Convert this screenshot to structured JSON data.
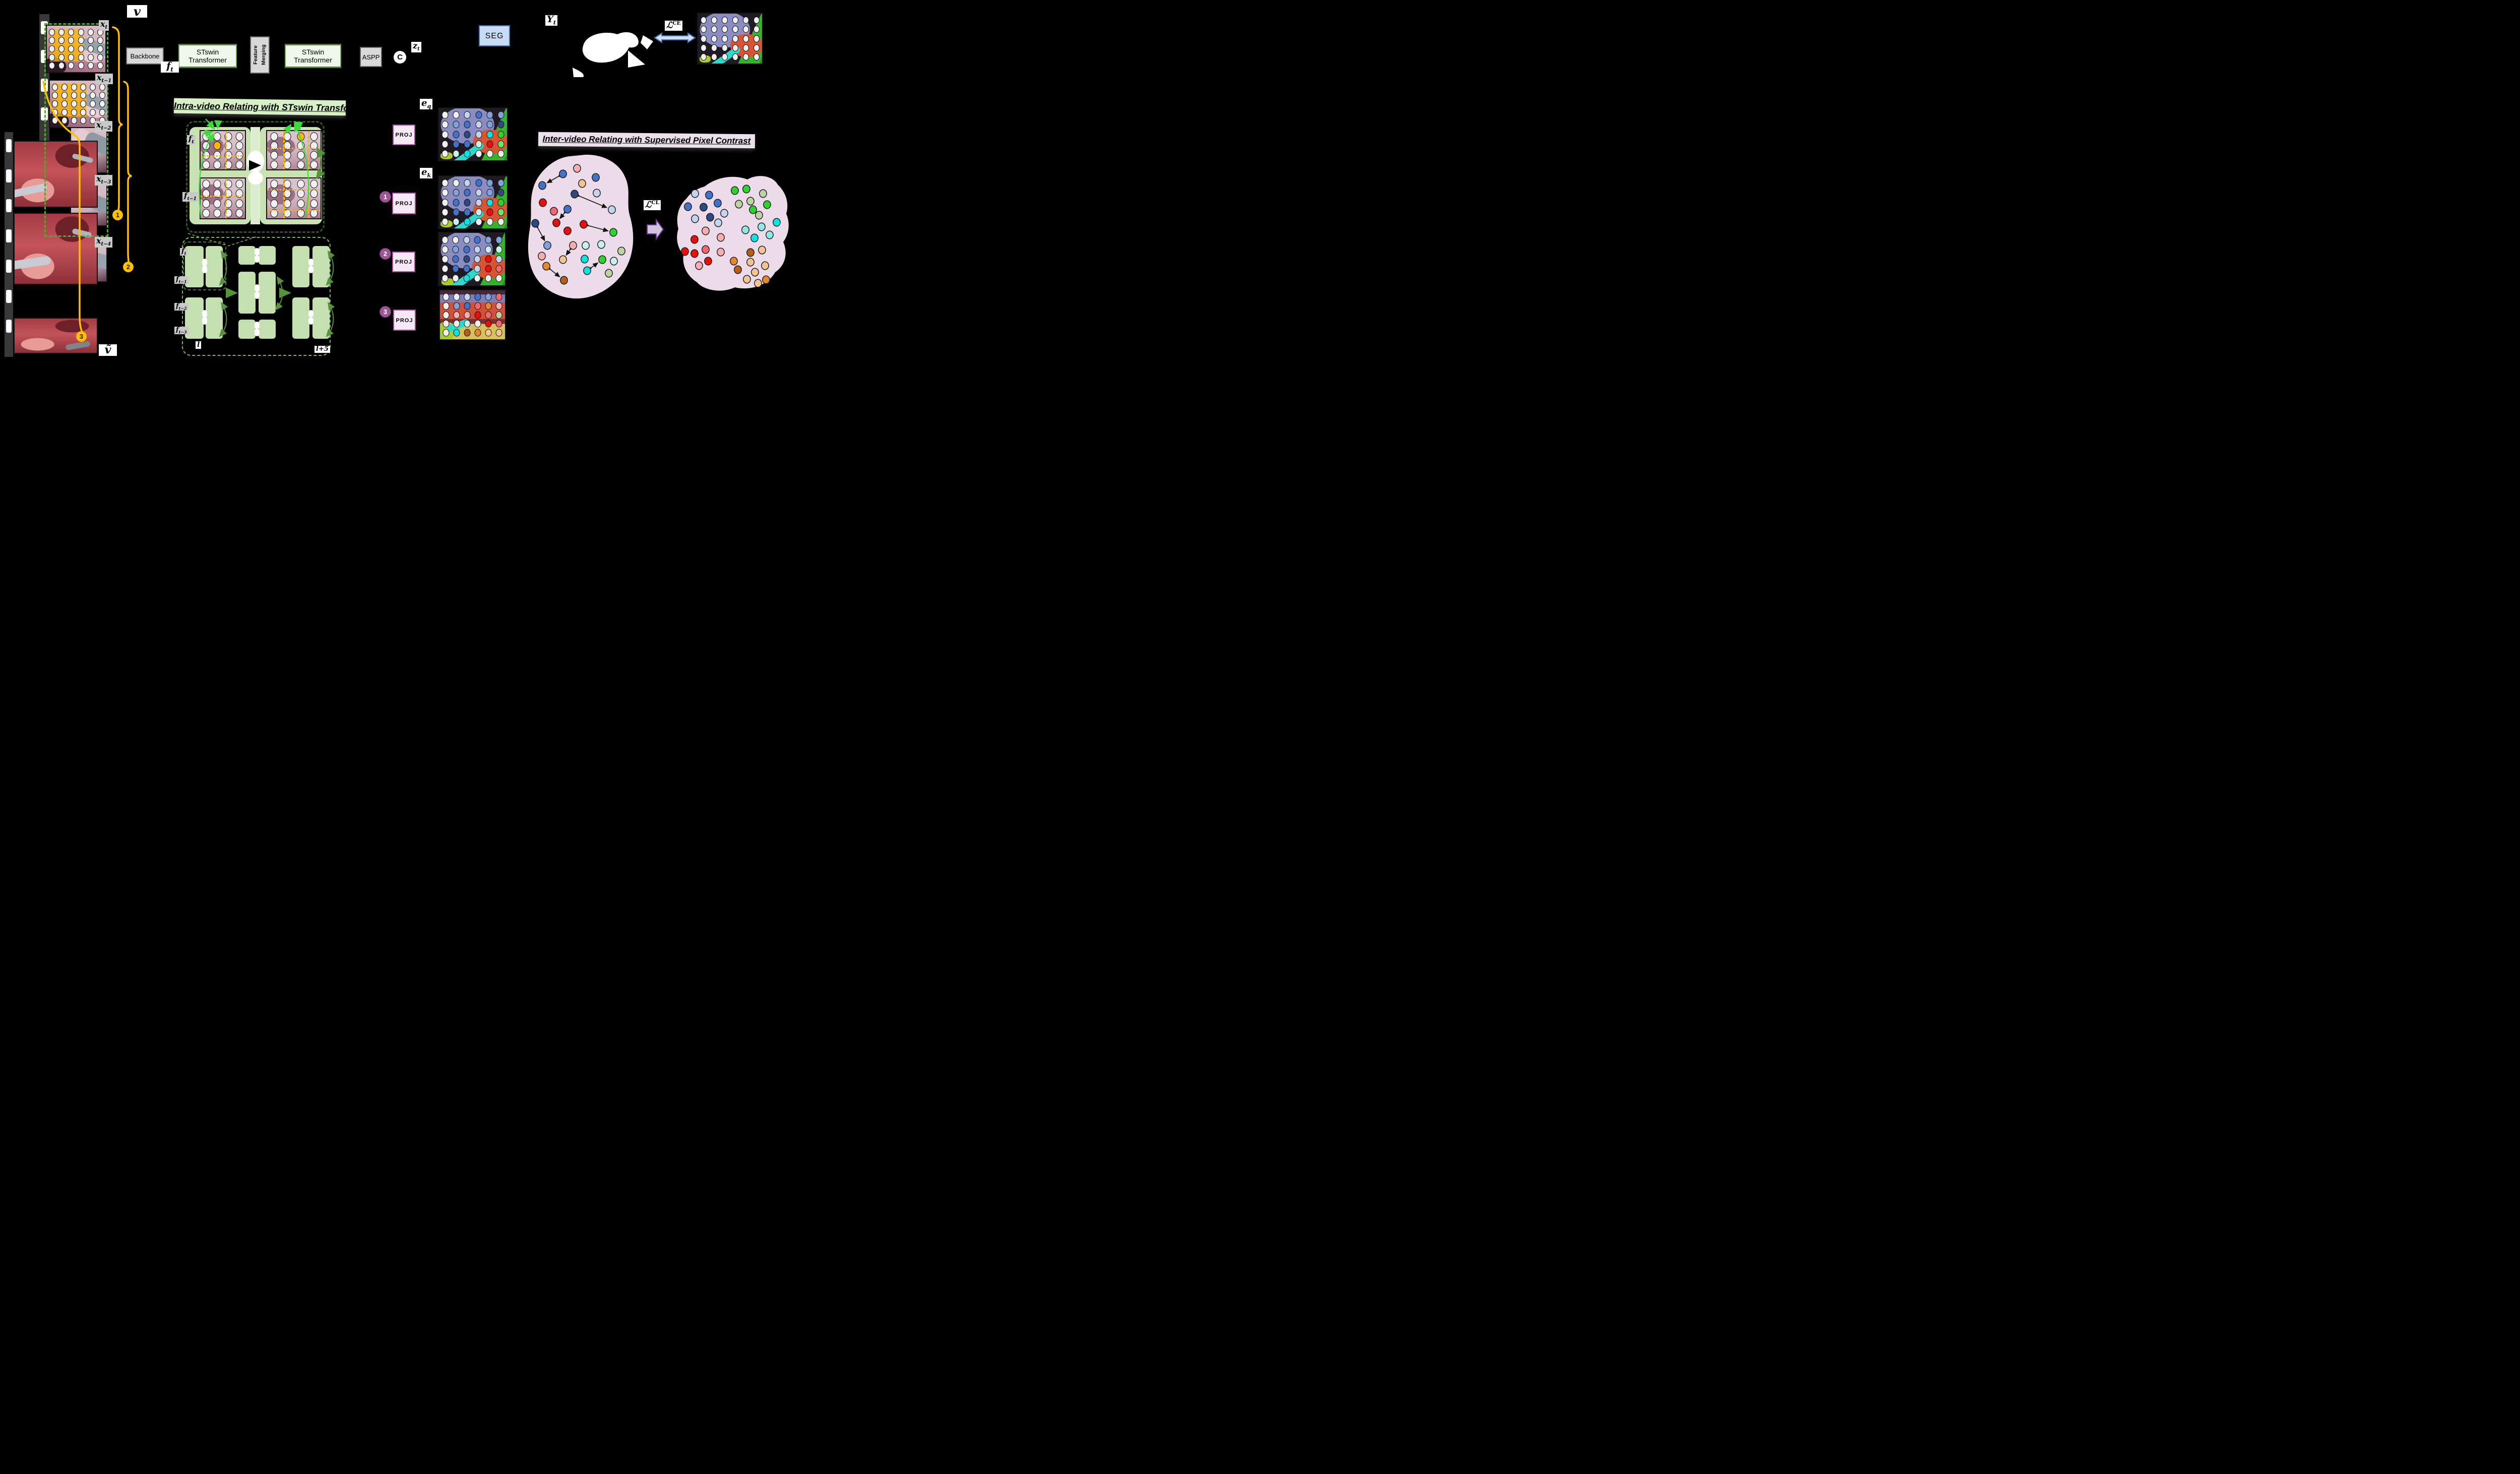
{
  "figure": {
    "background": "#000000"
  },
  "titles": {
    "intra": "Intra-video Relating with STswin Transformer",
    "inter": "Inter-video Relating with Supervised Pixel Contrast"
  },
  "pipeline": {
    "backbone": "Backbone",
    "stswin_line1": "STswin",
    "stswin_line2": "Transformer",
    "feature_merging": "Feature Merging",
    "aspp": "ASPP",
    "concat": "C",
    "seg": "SEG",
    "proj": "PROJ"
  },
  "math": {
    "v": {
      "base": "v"
    },
    "v_tilde": {
      "base": "ṽ"
    },
    "x_t": {
      "base": "x",
      "sub": "t"
    },
    "x_t1": {
      "base": "x",
      "sub": "t−1"
    },
    "x_t2": {
      "base": "x",
      "sub": "t−2"
    },
    "x_t3": {
      "base": "x",
      "sub": "t−3"
    },
    "x_t4": {
      "base": "x",
      "sub": "t−4"
    },
    "f_t": {
      "base": "f",
      "sub": "t"
    },
    "f_t1": {
      "base": "f",
      "sub": "t−1"
    },
    "f_t2": {
      "base": "f",
      "sub": "t−2"
    },
    "f_t3": {
      "base": "f",
      "sub": "t−3"
    },
    "z_t": {
      "base": "z",
      "sub": "t"
    },
    "y_t": {
      "base": "Y",
      "sub": "t"
    },
    "e_q": {
      "base": "e",
      "sub": "q"
    },
    "e_k": {
      "base": "e",
      "sub": "k"
    },
    "loss_ce": {
      "base": "ℒ",
      "sup": "CE"
    },
    "loss_cl": {
      "base": "ℒ",
      "sup": "CL"
    },
    "layer_l": "l",
    "layer_l5": "l+5"
  },
  "badges": {
    "clip1": "1",
    "clip2": "2",
    "clip3": "3",
    "proj1": "1",
    "proj2": "2",
    "proj3": "3"
  },
  "palette": {
    "white": "#f0f0f0",
    "blue": "#4273c8",
    "darkblue": "#2c4a80",
    "lightblue": "#7fa3d8",
    "paleblue": "#c4d4ec",
    "red": "#e8100c",
    "salmon": "#f0696e",
    "pink": "#f6aeae",
    "green": "#2ed32e",
    "lightgreen": "#67e667",
    "palegreen": "#bcd4a2",
    "cyan": "#0be2e2",
    "lightcyan": "#8fe8e2",
    "palecyan": "#c8f0ee",
    "orange": "#e6862e",
    "darkorange": "#b55d1d",
    "paleorange": "#f3c490"
  },
  "dot_grids": {
    "frame": [
      [
        "white",
        "white",
        "white",
        "white",
        "white",
        "white"
      ],
      [
        "white",
        "white",
        "white",
        "white",
        "white",
        "white"
      ],
      [
        "white",
        "white",
        "white",
        "white",
        "white",
        "white"
      ],
      [
        "white",
        "white",
        "white",
        "white",
        "white",
        "white"
      ],
      [
        "white",
        "white",
        "white",
        "white",
        "white",
        "white"
      ]
    ],
    "i44": [
      [
        "white",
        "white",
        "white",
        "white"
      ],
      [
        "white",
        "white",
        "white",
        "white"
      ],
      [
        "white",
        "white",
        "white",
        "white"
      ],
      [
        "white",
        "white",
        "white",
        "white"
      ]
    ],
    "pred": [
      [
        "white",
        "white",
        "white",
        "white",
        "white",
        "white"
      ],
      [
        "white",
        "white",
        "white",
        "white",
        "white",
        "white"
      ],
      [
        "white",
        "white",
        "white",
        "white",
        "white",
        "white"
      ],
      [
        "white",
        "white",
        "white",
        "white",
        "white",
        "white"
      ],
      [
        "white",
        "white",
        "white",
        "white",
        "white",
        "white"
      ]
    ],
    "eq": [
      [
        "white",
        "white",
        "paleblue",
        "blue",
        "lightblue",
        "lightblue"
      ],
      [
        "white",
        "lightblue",
        "blue",
        "paleblue",
        "lightblue",
        "darkblue"
      ],
      [
        "white",
        "blue",
        "darkblue",
        "paleblue",
        "cyan",
        "green"
      ],
      [
        "white",
        "blue",
        "blue",
        "palecyan",
        "red",
        "lightgreen"
      ],
      [
        "white",
        "palecyan",
        "cyan",
        "white",
        "white",
        "white"
      ]
    ],
    "ek1": [
      [
        "white",
        "white",
        "paleblue",
        "blue",
        "lightblue",
        "lightblue"
      ],
      [
        "white",
        "lightblue",
        "blue",
        "paleblue",
        "lightblue",
        "darkblue"
      ],
      [
        "white",
        "blue",
        "darkblue",
        "paleblue",
        "cyan",
        "green"
      ],
      [
        "white",
        "blue",
        "blue",
        "palecyan",
        "red",
        "lightgreen"
      ],
      [
        "white",
        "palecyan",
        "cyan",
        "white",
        "white",
        "white"
      ]
    ],
    "ek2": [
      [
        "white",
        "white",
        "paleblue",
        "blue",
        "lightblue",
        "lightblue"
      ],
      [
        "white",
        "lightblue",
        "blue",
        "paleblue",
        "palecyan",
        "palecyan"
      ],
      [
        "white",
        "blue",
        "darkblue",
        "paleblue",
        "red",
        "paleblue"
      ],
      [
        "white",
        "blue",
        "blue",
        "paleblue",
        "red",
        "salmon"
      ],
      [
        "white",
        "white",
        "cyan",
        "white",
        "white",
        "white"
      ]
    ],
    "ek3": [
      [
        "white",
        "white",
        "paleblue",
        "blue",
        "lightblue",
        "salmon"
      ],
      [
        "white",
        "lightblue",
        "blue",
        "salmon",
        "orange",
        "pink"
      ],
      [
        "white",
        "pink",
        "pink",
        "red",
        "salmon",
        "palegreen"
      ],
      [
        "white",
        "white",
        "palecyan",
        "white",
        "red",
        "salmon"
      ],
      [
        "white",
        "cyan",
        "darkorange",
        "orange",
        "paleorange",
        "paleorange"
      ]
    ]
  },
  "blob1": {
    "fill": "#ecdcea",
    "dots": [
      [
        100,
        29,
        "pink"
      ],
      [
        72,
        40,
        "blue"
      ],
      [
        137,
        47,
        "blue"
      ],
      [
        31,
        63,
        "blue"
      ],
      [
        110,
        59,
        "paleorange"
      ],
      [
        95,
        80,
        "darkblue"
      ],
      [
        139,
        78,
        "paleblue"
      ],
      [
        32,
        97,
        "red"
      ],
      [
        81,
        110,
        "blue"
      ],
      [
        54,
        114,
        "salmon"
      ],
      [
        169,
        111,
        "paleblue"
      ],
      [
        59,
        137,
        "red"
      ],
      [
        17,
        138,
        "darkblue"
      ],
      [
        113,
        140,
        "red"
      ],
      [
        81,
        153,
        "red"
      ],
      [
        172,
        156,
        "green"
      ],
      [
        41,
        182,
        "lightblue"
      ],
      [
        92,
        182,
        "pink"
      ],
      [
        117,
        182,
        "palecyan"
      ],
      [
        148,
        180,
        "palecyan"
      ],
      [
        188,
        193,
        "palegreen"
      ],
      [
        30,
        203,
        "pink"
      ],
      [
        72,
        210,
        "paleorange"
      ],
      [
        115,
        209,
        "cyan"
      ],
      [
        150,
        210,
        "green"
      ],
      [
        173,
        213,
        "palecyan"
      ],
      [
        39,
        223,
        "orange"
      ],
      [
        120,
        232,
        "cyan"
      ],
      [
        163,
        237,
        "palegreen"
      ],
      [
        74,
        251,
        "darkorange"
      ]
    ],
    "pairs": [
      [
        1,
        3
      ],
      [
        5,
        10
      ],
      [
        8,
        11
      ],
      [
        12,
        16
      ],
      [
        13,
        15
      ],
      [
        17,
        22
      ],
      [
        26,
        29
      ],
      [
        27,
        24
      ]
    ]
  },
  "blob2": {
    "fill": "#ecdcea",
    "dots": [
      [
        41,
        42,
        "paleblue"
      ],
      [
        69,
        45,
        "blue"
      ],
      [
        86,
        61,
        "blue"
      ],
      [
        27,
        68,
        "blue"
      ],
      [
        58,
        69,
        "darkblue"
      ],
      [
        120,
        36,
        "green"
      ],
      [
        143,
        33,
        "green"
      ],
      [
        176,
        42,
        "palegreen"
      ],
      [
        128,
        63,
        "palegreen"
      ],
      [
        151,
        57,
        "palegreen"
      ],
      [
        184,
        64,
        "green"
      ],
      [
        156,
        74,
        "green"
      ],
      [
        99,
        81,
        "paleblue"
      ],
      [
        71,
        89,
        "darkblue"
      ],
      [
        41,
        92,
        "paleblue"
      ],
      [
        168,
        85,
        "palegreen"
      ],
      [
        87,
        100,
        "paleblue"
      ],
      [
        203,
        99,
        "cyan"
      ],
      [
        173,
        108,
        "lightcyan"
      ],
      [
        141,
        114,
        "lightcyan"
      ],
      [
        62,
        116,
        "pink"
      ],
      [
        159,
        130,
        "cyan"
      ],
      [
        92,
        129,
        "pink"
      ],
      [
        189,
        124,
        "lightcyan"
      ],
      [
        40,
        133,
        "red"
      ],
      [
        21,
        157,
        "red"
      ],
      [
        62,
        153,
        "salmon"
      ],
      [
        40,
        161,
        "red"
      ],
      [
        92,
        158,
        "pink"
      ],
      [
        151,
        159,
        "darkorange"
      ],
      [
        174,
        154,
        "paleorange"
      ],
      [
        67,
        176,
        "red"
      ],
      [
        118,
        176,
        "orange"
      ],
      [
        151,
        178,
        "paleorange"
      ],
      [
        180,
        185,
        "paleorange"
      ],
      [
        49,
        185,
        "pink"
      ],
      [
        126,
        193,
        "darkorange"
      ],
      [
        160,
        198,
        "paleorange"
      ],
      [
        144,
        212,
        "paleorange"
      ],
      [
        166,
        220,
        "paleorange"
      ],
      [
        182,
        213,
        "orange"
      ]
    ]
  }
}
